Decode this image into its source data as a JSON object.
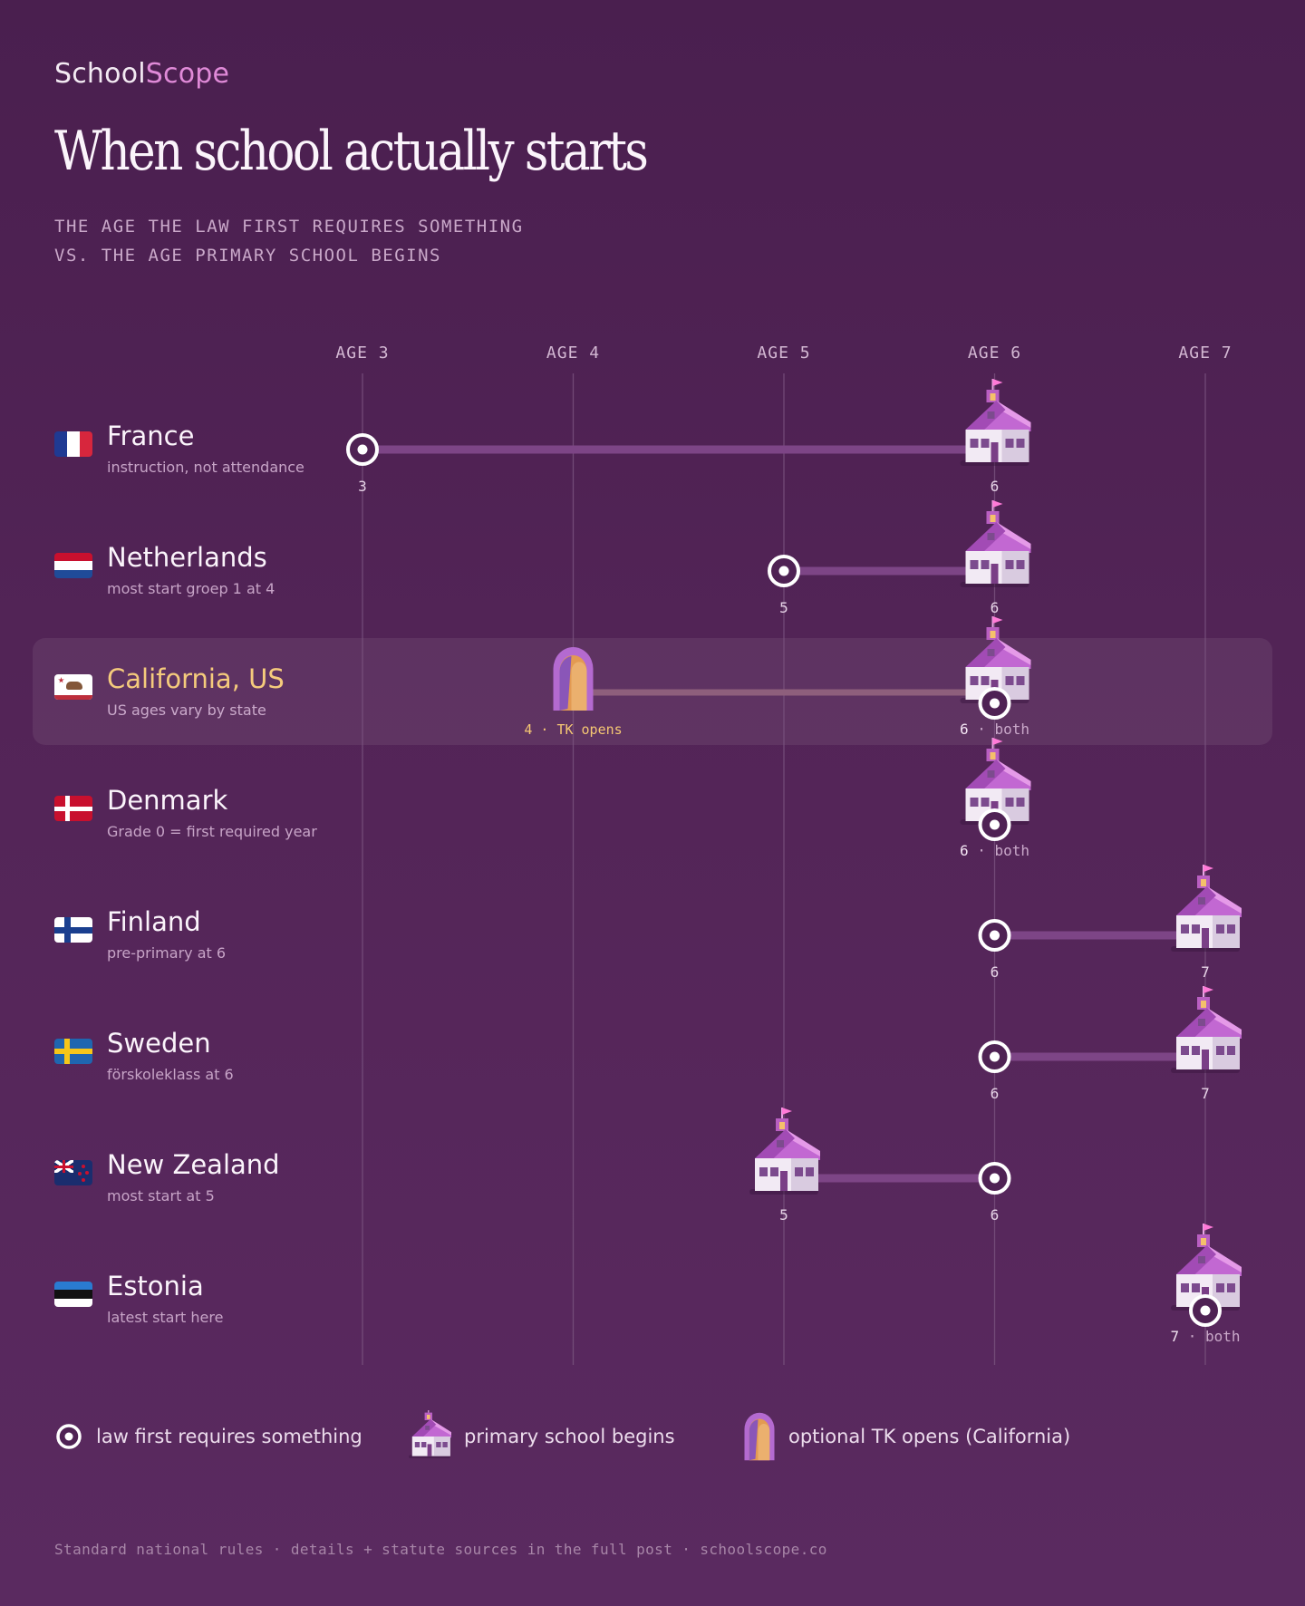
{
  "brand": {
    "part1": "School",
    "part2": "Scope"
  },
  "header": {
    "title": "When school actually starts",
    "subtitle_line1": "THE AGE THE LAW FIRST REQUIRES SOMETHING",
    "subtitle_line2": "VS. THE AGE PRIMARY SCHOOL BEGINS"
  },
  "colors": {
    "background": "#4a1f4f",
    "accent_pink": "#e08ad8",
    "highlight_gold": "#f5c773",
    "connector": "#7d4586",
    "gridline": "#7a5480",
    "marker_white": "#ffffff"
  },
  "chart_data": {
    "type": "dumbbell",
    "axis_labels": [
      "AGE 3",
      "AGE 4",
      "AGE 5",
      "AGE 6",
      "AGE 7"
    ],
    "xlim": [
      3,
      7
    ],
    "rows": [
      {
        "country": "France",
        "note": "instruction, not attendance",
        "flag": "france-flag",
        "law_age": 3,
        "school_age": 6,
        "law_label": "3",
        "school_label": "6"
      },
      {
        "country": "Netherlands",
        "note": "most start groep 1 at 4",
        "flag": "netherlands-flag",
        "law_age": 5,
        "school_age": 6,
        "law_label": "5",
        "school_label": "6"
      },
      {
        "country": "California, US",
        "note": "US ages vary by state",
        "flag": "california-flag",
        "highlight": true,
        "tk_age": 4,
        "tk_label_num": "4",
        "tk_label_text": "TK opens",
        "law_age": 6,
        "school_age": 6,
        "school_label": "6",
        "both_label": "both"
      },
      {
        "country": "Denmark",
        "note": "Grade 0 = first required year",
        "flag": "denmark-flag",
        "law_age": 6,
        "school_age": 6,
        "school_label": "6",
        "both_label": "both"
      },
      {
        "country": "Finland",
        "note": "pre-primary at 6",
        "flag": "finland-flag",
        "law_age": 6,
        "school_age": 7,
        "law_label": "6",
        "school_label": "7"
      },
      {
        "country": "Sweden",
        "note": "förskoleklass at 6",
        "flag": "sweden-flag",
        "law_age": 6,
        "school_age": 7,
        "law_label": "6",
        "school_label": "7"
      },
      {
        "country": "New Zealand",
        "note": "most start at 5",
        "flag": "new-zealand-flag",
        "law_age": 6,
        "school_age": 5,
        "law_label": "6",
        "school_label": "5"
      },
      {
        "country": "Estonia",
        "note": "latest start here",
        "flag": "estonia-flag",
        "law_age": 7,
        "school_age": 7,
        "school_label": "7",
        "both_label": "both"
      }
    ]
  },
  "legend": {
    "law": "law first requires something",
    "school": "primary school begins",
    "tk": "optional TK opens (California)"
  },
  "footer": "Standard national rules · details + statute sources in the full post · schoolscope.co"
}
